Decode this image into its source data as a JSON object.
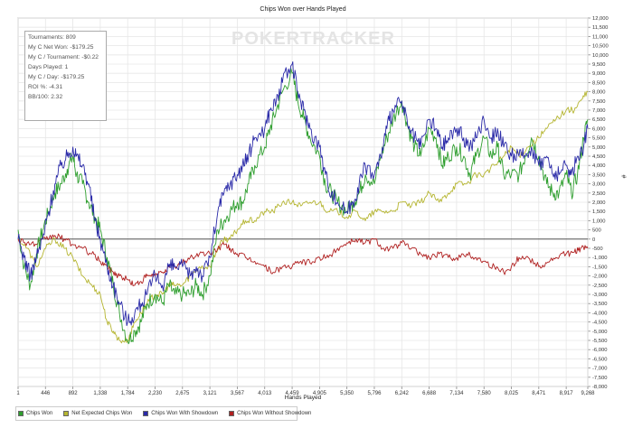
{
  "chart_data": {
    "type": "line",
    "title": "Chips Won over Hands Played",
    "xlabel": "Hands Played",
    "ylabel": "#",
    "xlim": [
      1,
      9268
    ],
    "ylim": [
      -8000,
      12000
    ],
    "x_ticks": [
      "1",
      "446",
      "892",
      "1,338",
      "1,784",
      "2,230",
      "2,675",
      "3,121",
      "3,567",
      "4,013",
      "4,459",
      "4,905",
      "5,350",
      "5,796",
      "6,242",
      "6,688",
      "7,134",
      "7,580",
      "8,025",
      "8,471",
      "8,917",
      "9,268"
    ],
    "y_ticks": [
      "12,000",
      "11,500",
      "11,000",
      "10,500",
      "10,000",
      "9,500",
      "9,000",
      "8,500",
      "8,000",
      "7,500",
      "7,000",
      "6,500",
      "6,000",
      "5,500",
      "5,000",
      "4,500",
      "4,000",
      "3,500",
      "3,000",
      "2,500",
      "2,000",
      "1,500",
      "1,000",
      "500",
      "0",
      "-500",
      "-1,000",
      "-1,500",
      "-2,000",
      "-2,500",
      "-3,000",
      "-3,500",
      "-4,000",
      "-4,500",
      "-5,000",
      "-5,500",
      "-6,000",
      "-6,500",
      "-7,000",
      "-7,500",
      "-8,000"
    ],
    "grid": true,
    "legend_position": "bottom-left",
    "series": [
      {
        "name": "Chips Won",
        "color": "#2e9e2e",
        "x": [
          1,
          100,
          200,
          300,
          400,
          500,
          600,
          700,
          800,
          892,
          950,
          1050,
          1150,
          1250,
          1338,
          1450,
          1550,
          1650,
          1784,
          1900,
          2000,
          2100,
          2230,
          2350,
          2450,
          2550,
          2675,
          2800,
          2900,
          3000,
          3121,
          3250,
          3350,
          3450,
          3567,
          3650,
          3750,
          3850,
          4013,
          4100,
          4200,
          4300,
          4459,
          4550,
          4650,
          4750,
          4905,
          5000,
          5100,
          5200,
          5350,
          5450,
          5550,
          5650,
          5796,
          5900,
          6000,
          6100,
          6242,
          6350,
          6450,
          6550,
          6688,
          6800,
          6900,
          7000,
          7134,
          7250,
          7350,
          7450,
          7580,
          7700,
          7800,
          7900,
          8025,
          8150,
          8250,
          8350,
          8471,
          8600,
          8700,
          8800,
          8917,
          9000,
          9100,
          9200,
          9268
        ],
        "values": [
          500,
          -1500,
          -2500,
          -800,
          500,
          1500,
          2500,
          3000,
          3800,
          4500,
          3500,
          3000,
          2000,
          1200,
          500,
          -1000,
          -2500,
          -4000,
          -5500,
          -5000,
          -4500,
          -3500,
          -3000,
          -3500,
          -2500,
          -3000,
          -3000,
          -3000,
          -2500,
          -3000,
          -2000,
          500,
          1000,
          1500,
          2000,
          2000,
          3000,
          4000,
          5000,
          6000,
          7000,
          8000,
          9000,
          7500,
          6500,
          5500,
          4500,
          3000,
          2500,
          2000,
          1500,
          2000,
          2500,
          3500,
          3000,
          4500,
          5500,
          6500,
          7500,
          6000,
          5000,
          4500,
          6000,
          5500,
          4000,
          4500,
          5000,
          4500,
          3500,
          4500,
          5500,
          4500,
          5000,
          3500,
          3500,
          3500,
          4500,
          5500,
          4500,
          3000,
          2500,
          2500,
          3500,
          2500,
          3500,
          5500,
          6500
        ]
      },
      {
        "name": "Net Expected Chips Won",
        "color": "#b5b530",
        "x": [
          1,
          150,
          300,
          450,
          600,
          750,
          892,
          1050,
          1200,
          1338,
          1450,
          1550,
          1650,
          1784,
          1900,
          2000,
          2100,
          2230,
          2350,
          2450,
          2550,
          2675,
          2800,
          2950,
          3121,
          3250,
          3350,
          3450,
          3567,
          3700,
          3850,
          4013,
          4150,
          4300,
          4459,
          4600,
          4750,
          4905,
          5050,
          5200,
          5350,
          5500,
          5650,
          5796,
          5950,
          6100,
          6242,
          6400,
          6550,
          6688,
          6850,
          7000,
          7134,
          7300,
          7450,
          7580,
          7750,
          7900,
          8025,
          8150,
          8300,
          8471,
          8600,
          8750,
          8917,
          9050,
          9150,
          9268
        ],
        "values": [
          0,
          -500,
          -1500,
          -500,
          0,
          -500,
          -1000,
          -2000,
          -2500,
          -3000,
          -4500,
          -5000,
          -5500,
          -5500,
          -4500,
          -4000,
          -3500,
          -3000,
          -3000,
          -2500,
          -2500,
          -2500,
          -2000,
          -1500,
          -1500,
          -500,
          0,
          0,
          500,
          1000,
          1000,
          1500,
          1500,
          2000,
          2000,
          1800,
          2000,
          2000,
          1500,
          1500,
          1200,
          1500,
          1000,
          1500,
          1500,
          1500,
          2000,
          1800,
          2000,
          2500,
          2000,
          2500,
          3000,
          3000,
          3500,
          3500,
          4000,
          4500,
          5000,
          4500,
          5000,
          5500,
          6000,
          6500,
          7000,
          7000,
          7500,
          8000
        ]
      },
      {
        "name": "Chips Won With Showdown",
        "color": "#2a2aa8",
        "x": [
          1,
          100,
          200,
          300,
          400,
          500,
          600,
          700,
          800,
          892,
          950,
          1050,
          1150,
          1250,
          1338,
          1450,
          1550,
          1650,
          1784,
          1900,
          2000,
          2100,
          2230,
          2350,
          2450,
          2550,
          2675,
          2800,
          2900,
          3000,
          3121,
          3250,
          3350,
          3450,
          3567,
          3650,
          3750,
          3850,
          4013,
          4100,
          4200,
          4300,
          4459,
          4550,
          4650,
          4750,
          4905,
          5000,
          5100,
          5200,
          5350,
          5450,
          5550,
          5650,
          5796,
          5900,
          6000,
          6100,
          6242,
          6350,
          6450,
          6550,
          6688,
          6800,
          6900,
          7000,
          7134,
          7250,
          7350,
          7450,
          7580,
          7700,
          7800,
          7900,
          8025,
          8150,
          8250,
          8350,
          8471,
          8600,
          8700,
          8800,
          8917,
          9000,
          9100,
          9200,
          9268
        ],
        "values": [
          0,
          -1000,
          -2000,
          -1000,
          0,
          1500,
          3000,
          4000,
          4500,
          5000,
          4500,
          4000,
          3000,
          1000,
          0,
          -1500,
          -2500,
          -3500,
          -4500,
          -4000,
          -3500,
          -3000,
          -2000,
          -2500,
          -1500,
          -1500,
          -1500,
          -2000,
          -1500,
          -2000,
          -1000,
          1500,
          2500,
          3000,
          3500,
          4000,
          4500,
          5500,
          6000,
          7000,
          7500,
          8500,
          9500,
          8000,
          7000,
          6000,
          5000,
          3500,
          2500,
          2000,
          1500,
          2000,
          3000,
          4000,
          3500,
          4500,
          6000,
          7000,
          7500,
          6000,
          5500,
          5000,
          6500,
          6000,
          5000,
          5500,
          6000,
          5500,
          5000,
          5500,
          6500,
          5500,
          6000,
          5000,
          4500,
          4500,
          4500,
          5000,
          4000,
          4500,
          3500,
          3500,
          4000,
          3500,
          4500,
          5000,
          6000
        ]
      },
      {
        "name": "Chips Won Without Showdown",
        "color": "#b02020",
        "x": [
          1,
          150,
          300,
          450,
          600,
          750,
          892,
          1050,
          1200,
          1338,
          1450,
          1550,
          1650,
          1784,
          1900,
          2000,
          2100,
          2230,
          2350,
          2450,
          2550,
          2675,
          2800,
          2950,
          3121,
          3250,
          3350,
          3450,
          3567,
          3700,
          3850,
          4013,
          4150,
          4300,
          4459,
          4600,
          4750,
          4905,
          5050,
          5200,
          5350,
          5500,
          5650,
          5796,
          5950,
          6100,
          6242,
          6400,
          6550,
          6688,
          6850,
          7000,
          7134,
          7300,
          7450,
          7580,
          7750,
          7900,
          8025,
          8150,
          8300,
          8471,
          8600,
          8750,
          8917,
          9050,
          9150,
          9268
        ],
        "values": [
          0,
          -200,
          -300,
          0,
          200,
          0,
          -300,
          -500,
          -800,
          -1200,
          -1500,
          -1800,
          -2000,
          -2200,
          -2500,
          -2300,
          -2000,
          -2000,
          -1800,
          -1500,
          -1500,
          -1300,
          -1000,
          -800,
          -800,
          -500,
          -300,
          -500,
          -800,
          -1000,
          -1200,
          -1500,
          -1800,
          -1500,
          -1500,
          -1200,
          -1300,
          -1000,
          -1000,
          -500,
          -200,
          0,
          -200,
          0,
          -500,
          -500,
          -200,
          -500,
          -800,
          -1000,
          -800,
          -1000,
          -1000,
          -800,
          -1000,
          -1200,
          -1500,
          -1800,
          -1500,
          -1000,
          -1000,
          -1500,
          -1300,
          -1000,
          -800,
          -700,
          -500,
          -500
        ]
      }
    ]
  },
  "stats": {
    "tournaments": "Tournaments: 809",
    "net_won": "My C Net Won: -$179.25",
    "per_tournament": "My C / Tournament: -$0.22",
    "days_played": "Days Played: 1",
    "per_day": "My C / Day: -$179.25",
    "roi": "ROI %: -4.31",
    "bb100": "BB/100: 2.32"
  },
  "watermark": "POKERTRACKER",
  "legend": {
    "chips_won": "Chips Won",
    "net_expected": "Net Expected Chips Won",
    "with_showdown": "Chips Won With Showdown",
    "without_showdown": "Chips Won Without Showdown"
  }
}
